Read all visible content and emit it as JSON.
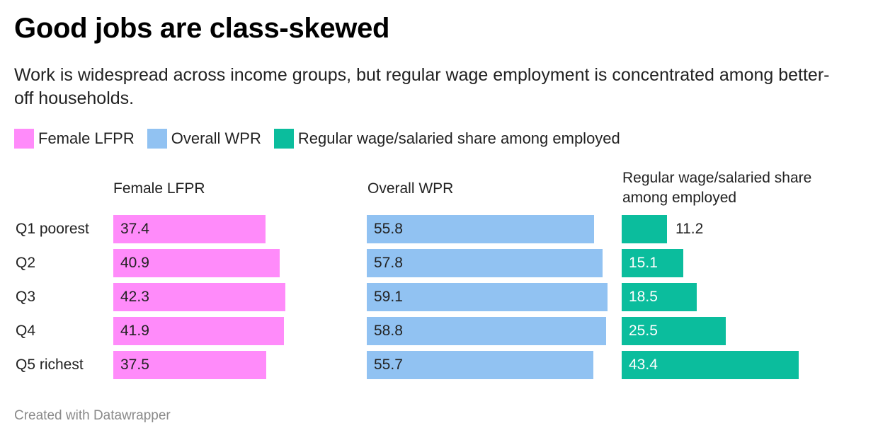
{
  "title": "Good jobs are class-skewed",
  "subtitle": "Work is widespread across income groups, but regular wage employment is concentrated among better-off households.",
  "legend": [
    {
      "label": "Female LFPR",
      "color": "#ff8bfa"
    },
    {
      "label": "Overall WPR",
      "color": "#91c2f2"
    },
    {
      "label": "Regular wage/salaried share among employed",
      "color": "#0bbd9d"
    }
  ],
  "footer": "Created with Datawrapper",
  "chart_data": {
    "type": "bar",
    "orientation": "horizontal",
    "layout": "small-multiples",
    "categories": [
      "Q1 poorest",
      "Q2",
      "Q3",
      "Q4",
      "Q5 richest"
    ],
    "series": [
      {
        "name": "Female LFPR",
        "color": "#ff8bfa",
        "values": [
          37.4,
          40.9,
          42.3,
          41.9,
          37.5
        ]
      },
      {
        "name": "Overall WPR",
        "color": "#91c2f2",
        "values": [
          55.8,
          57.8,
          59.1,
          58.8,
          55.7
        ]
      },
      {
        "name": "Regular wage/salaried share among employed",
        "color": "#0bbd9d",
        "values": [
          11.2,
          15.1,
          18.5,
          25.5,
          43.4
        ]
      }
    ],
    "panel_titles": [
      "Female LFPR",
      "Overall WPR",
      "Regular wage/salaried share among employed"
    ],
    "xlim": [
      0,
      59.1
    ],
    "grid": false,
    "legend_position": "top-left"
  }
}
